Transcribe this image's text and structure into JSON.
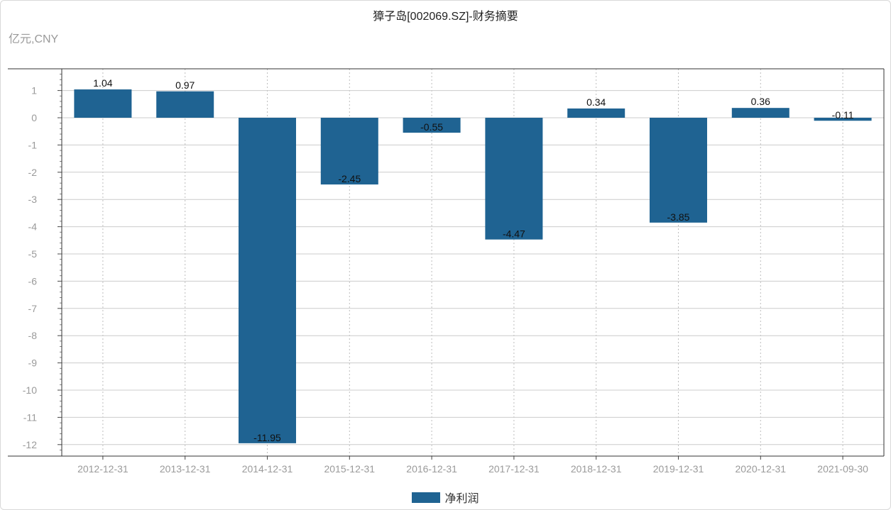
{
  "chart_data": {
    "type": "bar",
    "title": "獐子岛[002069.SZ]-财务摘要",
    "unit": "亿元,CNY",
    "categories": [
      "2012-12-31",
      "2013-12-31",
      "2014-12-31",
      "2015-12-31",
      "2016-12-31",
      "2017-12-31",
      "2018-12-31",
      "2019-12-31",
      "2020-12-31",
      "2021-09-30"
    ],
    "series": [
      {
        "name": "净利润",
        "color": "#1f6392",
        "values": [
          1.04,
          0.97,
          -11.95,
          -2.45,
          -0.55,
          -4.47,
          0.34,
          -3.85,
          0.36,
          -0.11
        ],
        "labels": [
          "1.04",
          "0.97",
          "-11.95",
          "-2.45",
          "-0.55",
          "-4.47",
          "0.34",
          "-3.85",
          "0.36",
          "-0.11"
        ]
      }
    ],
    "yticks": [
      "1",
      "0",
      "-1",
      "-2",
      "-3",
      "-4",
      "-5",
      "-6",
      "-7",
      "-8",
      "-9",
      "-10",
      "-11",
      "-12"
    ],
    "ylim": [
      -12.3,
      1.8
    ],
    "grid": true,
    "legend_position": "bottom-center"
  }
}
